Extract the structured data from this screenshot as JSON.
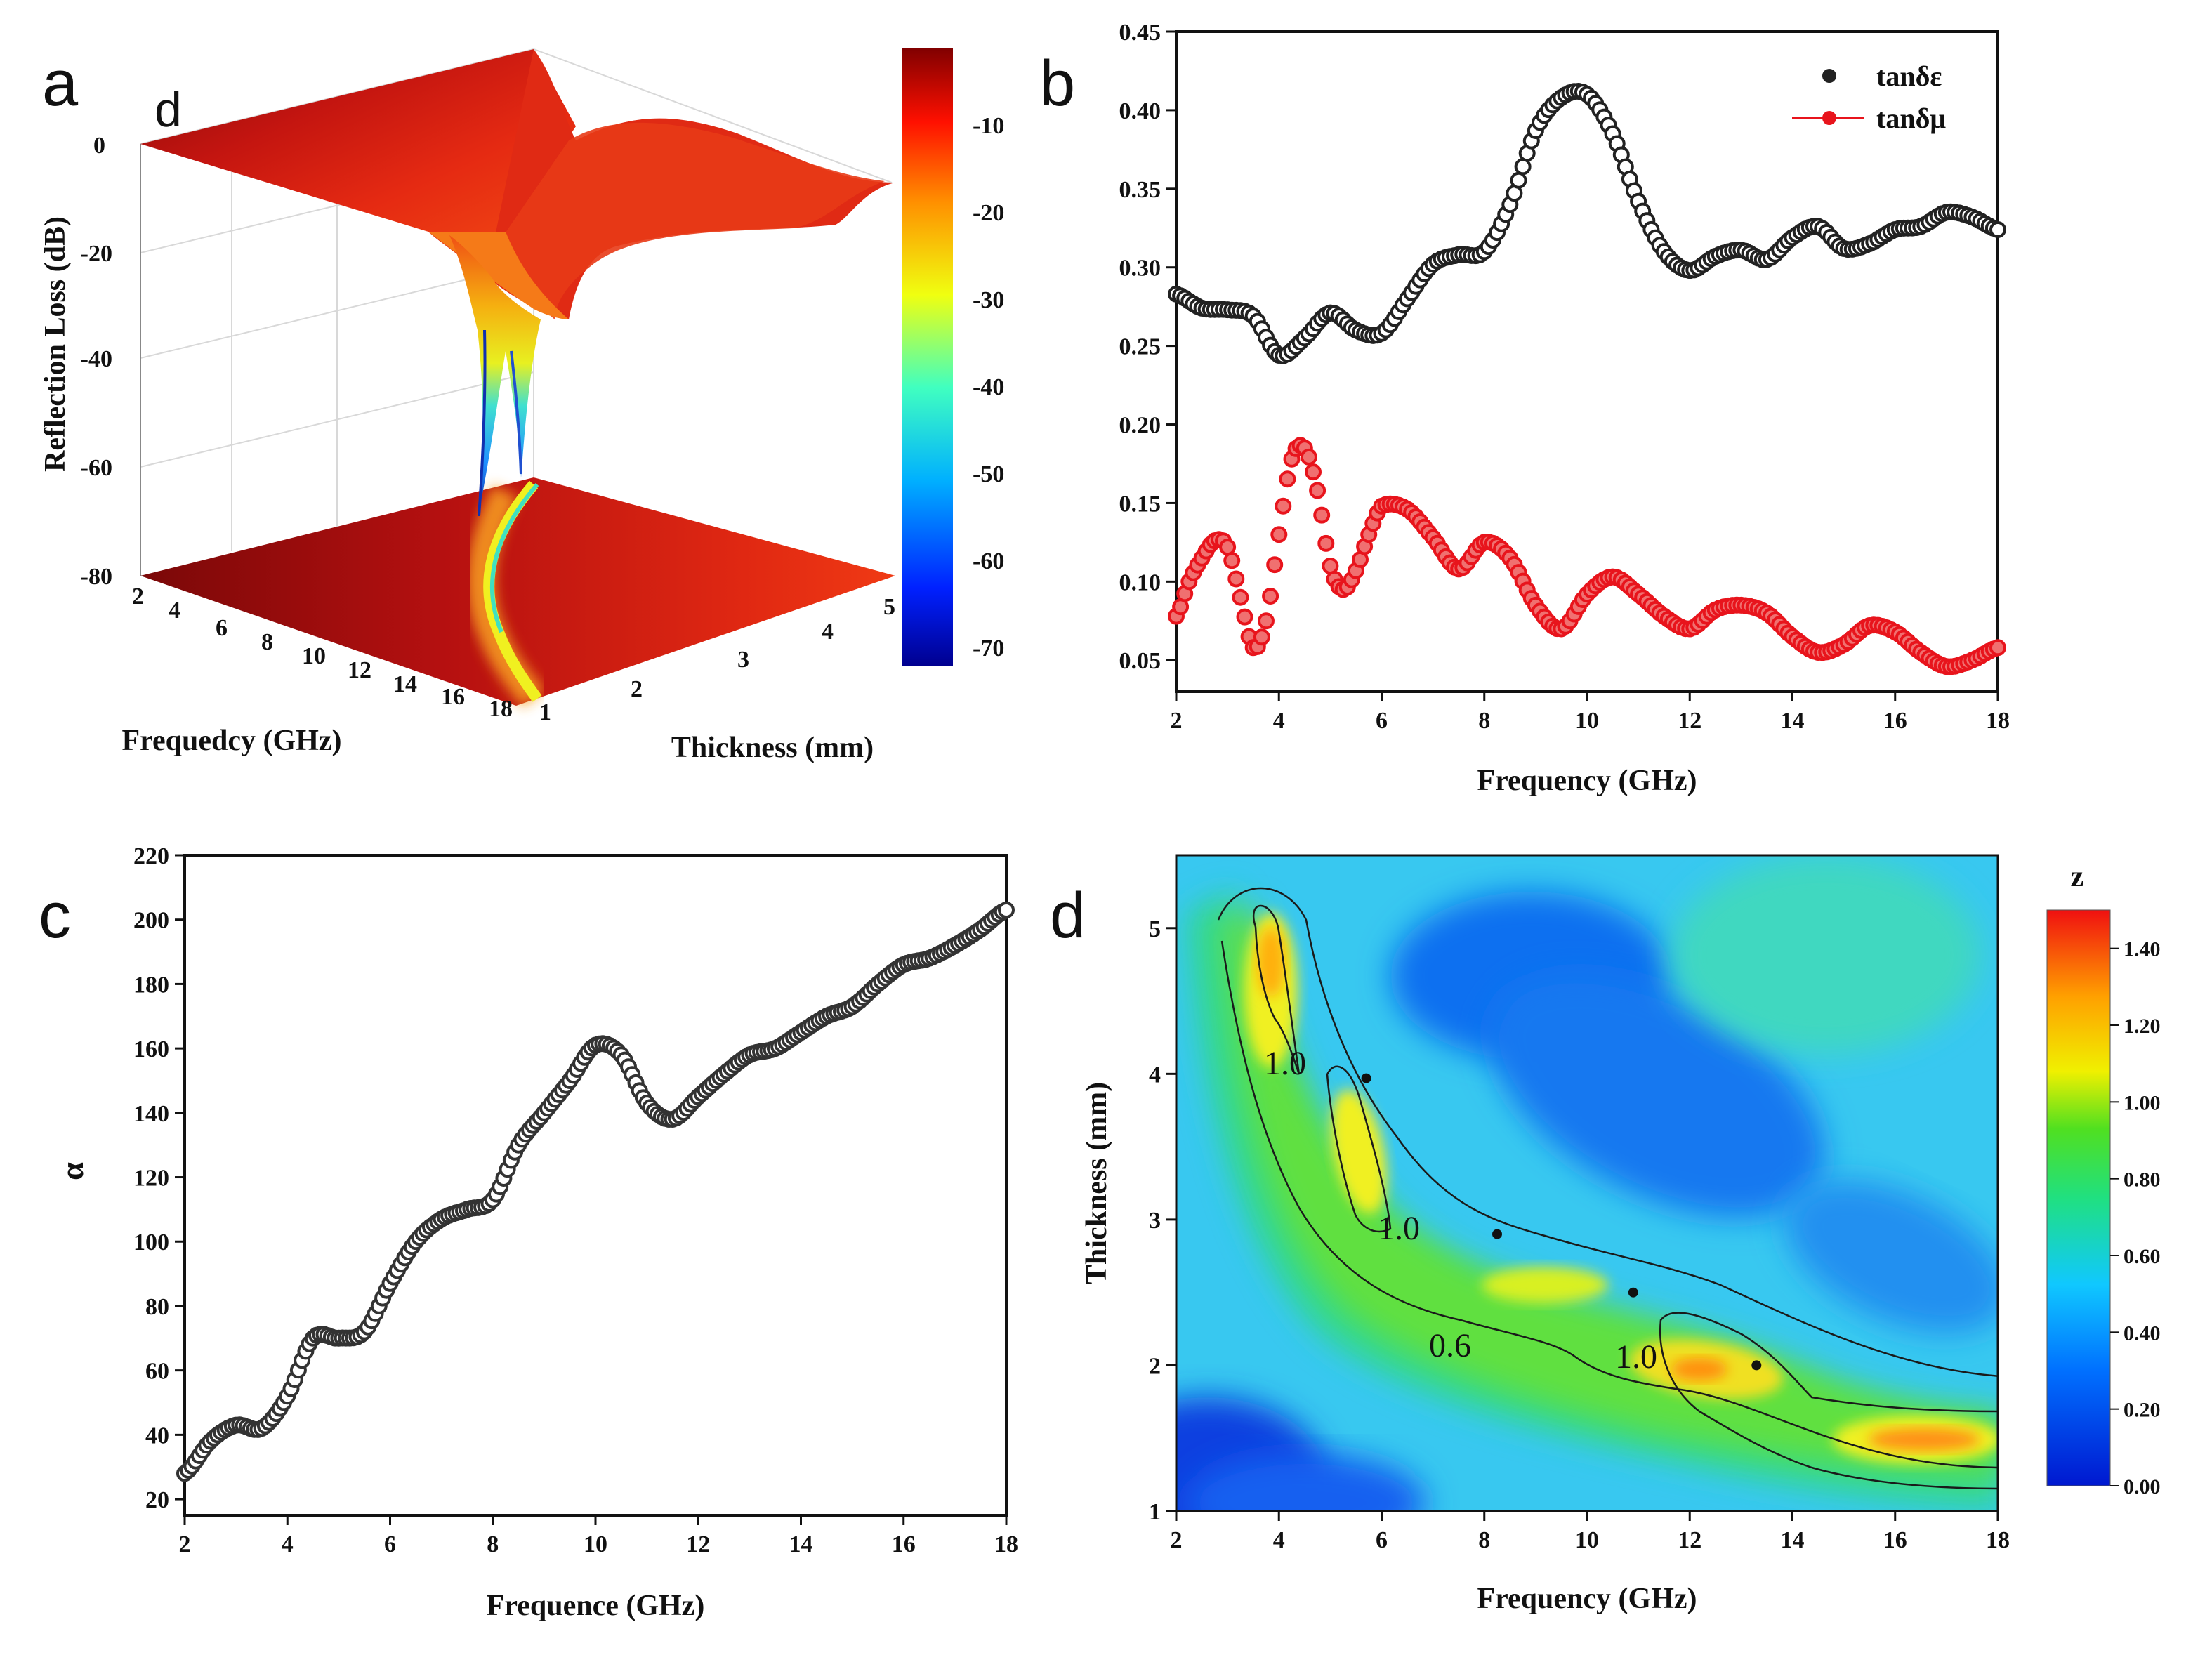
{
  "panels": {
    "a": {
      "letter": "a",
      "overlay_letter": "d",
      "z_title": "Reflection Loss (dB)",
      "x_title": "Frequedcy (GHz)",
      "y_title": "Thickness (mm)",
      "z_ticks": [
        "0",
        "-20",
        "-40",
        "-60",
        "-80"
      ],
      "x_ticks": [
        "2",
        "4",
        "6",
        "8",
        "10",
        "12",
        "14",
        "16",
        "18"
      ],
      "y_ticks": [
        "1",
        "2",
        "3",
        "4",
        "5"
      ],
      "colorbar_ticks": [
        "-10",
        "-20",
        "-30",
        "-40",
        "-50",
        "-60",
        "-70"
      ]
    },
    "b": {
      "letter": "b",
      "x_title": "Frequency (GHz)",
      "x_ticks": [
        "2",
        "4",
        "6",
        "8",
        "10",
        "12",
        "14",
        "16",
        "18"
      ],
      "y_ticks": [
        "0.05",
        "0.10",
        "0.15",
        "0.20",
        "0.25",
        "0.30",
        "0.35",
        "0.40",
        "0.45"
      ],
      "legend": [
        "tanδε",
        "tanδμ"
      ]
    },
    "c": {
      "letter": "c",
      "x_title": "Frequence (GHz)",
      "y_title": "α",
      "x_ticks": [
        "2",
        "4",
        "6",
        "8",
        "10",
        "12",
        "14",
        "16",
        "18"
      ],
      "y_ticks": [
        "20",
        "40",
        "60",
        "80",
        "100",
        "120",
        "140",
        "160",
        "180",
        "200",
        "220"
      ]
    },
    "d": {
      "letter": "d",
      "x_title": "Frequency (GHz)",
      "y_title": "Thickness (mm)",
      "x_ticks": [
        "2",
        "4",
        "6",
        "8",
        "10",
        "12",
        "14",
        "16",
        "18"
      ],
      "y_ticks": [
        "1",
        "2",
        "3",
        "4",
        "5"
      ],
      "colorbar_title": "z",
      "colorbar_ticks": [
        "0.00",
        "0.20",
        "0.40",
        "0.60",
        "0.80",
        "1.00",
        "1.20",
        "1.40"
      ],
      "contour_labels": [
        "1.0",
        "1.0",
        "0.6",
        "1.0"
      ]
    }
  },
  "colors": {
    "tan_e": "#222222",
    "tan_u": "#e8141c",
    "alpha_line": "#333333",
    "surface_dark_red": "#8b0000",
    "surface_red": "#e0201c",
    "surface_orange": "#f08020",
    "surface_yellow": "#f0f000",
    "surface_cyan": "#30d0f0",
    "surface_blue": "#1020a0"
  },
  "chart_data": [
    {
      "panel": "a",
      "type": "surface",
      "zlabel": "Reflection Loss (dB)",
      "xlabel": "Frequedcy (GHz)",
      "ylabel": "Thickness (mm)",
      "xlim": [
        2,
        18
      ],
      "ylim": [
        1,
        5
      ],
      "zlim": [
        -80,
        0
      ],
      "colorbar_range": [
        -75,
        -2
      ],
      "min_point": {
        "frequency": 7,
        "thickness": 3,
        "rl": -74
      },
      "colormap": "jet"
    },
    {
      "panel": "b",
      "type": "scatter",
      "xlabel": "Frequency (GHz)",
      "xlim": [
        2,
        18
      ],
      "ylim": [
        0.03,
        0.45
      ],
      "legend_position": "top-right",
      "series": [
        {
          "name": "tanδε",
          "x": [
            2,
            2.5,
            3,
            3.5,
            4,
            4.5,
            5,
            5.5,
            6,
            6.5,
            7,
            7.5,
            8,
            8.5,
            9,
            9.5,
            10,
            10.5,
            11,
            11.5,
            12,
            12.5,
            13,
            13.5,
            14,
            14.5,
            15,
            15.5,
            16,
            16.5,
            17,
            17.5,
            18
          ],
          "y": [
            0.283,
            0.274,
            0.273,
            0.269,
            0.244,
            0.255,
            0.271,
            0.26,
            0.258,
            0.28,
            0.302,
            0.308,
            0.31,
            0.34,
            0.387,
            0.408,
            0.41,
            0.385,
            0.342,
            0.31,
            0.298,
            0.307,
            0.311,
            0.305,
            0.319,
            0.326,
            0.312,
            0.315,
            0.324,
            0.326,
            0.335,
            0.332,
            0.324
          ]
        },
        {
          "name": "tanδμ",
          "x": [
            2,
            2.25,
            2.5,
            2.75,
            3,
            3.25,
            3.5,
            3.75,
            4,
            4.25,
            4.5,
            4.75,
            5,
            5.25,
            5.5,
            5.75,
            6,
            6.5,
            7,
            7.5,
            8,
            8.5,
            9,
            9.5,
            10,
            10.5,
            11,
            11.5,
            12,
            12.5,
            13,
            13.5,
            14,
            14.5,
            15,
            15.5,
            16,
            16.5,
            17,
            17.5,
            18
          ],
          "y": [
            0.078,
            0.1,
            0.115,
            0.126,
            0.122,
            0.09,
            0.058,
            0.075,
            0.13,
            0.178,
            0.185,
            0.158,
            0.11,
            0.095,
            0.107,
            0.13,
            0.148,
            0.146,
            0.128,
            0.108,
            0.125,
            0.115,
            0.085,
            0.07,
            0.092,
            0.103,
            0.092,
            0.078,
            0.07,
            0.082,
            0.085,
            0.08,
            0.065,
            0.055,
            0.06,
            0.072,
            0.068,
            0.055,
            0.046,
            0.05,
            0.058
          ]
        }
      ]
    },
    {
      "panel": "c",
      "type": "scatter",
      "xlabel": "Frequence (GHz)",
      "ylabel": "α",
      "xlim": [
        2,
        18
      ],
      "ylim": [
        15,
        220
      ],
      "series": [
        {
          "name": "",
          "x": [
            2,
            2.5,
            3,
            3.5,
            4,
            4.5,
            5,
            5.5,
            6,
            6.5,
            7,
            7.5,
            8,
            8.5,
            9,
            9.5,
            10,
            10.5,
            11,
            11.5,
            12,
            12.5,
            13,
            13.5,
            14,
            14.5,
            15,
            15.5,
            16,
            16.5,
            17,
            17.5,
            18
          ],
          "y": [
            28,
            38,
            43,
            42,
            52,
            70,
            70,
            72,
            87,
            100,
            107,
            110,
            113,
            130,
            140,
            150,
            161,
            158,
            143,
            138,
            145,
            152,
            158,
            160,
            165,
            170,
            173,
            180,
            186,
            188,
            192,
            197,
            203
          ]
        }
      ]
    },
    {
      "panel": "d",
      "type": "heatmap",
      "xlabel": "Frequency (GHz)",
      "ylabel": "Thickness (mm)",
      "xlim": [
        2,
        18
      ],
      "ylim": [
        1,
        5.5
      ],
      "zlim": [
        0,
        1.5
      ],
      "contour_levels": [
        0.6,
        1.0
      ],
      "marked_points": [
        {
          "x": 5.7,
          "y": 3.97
        },
        {
          "x": 8.25,
          "y": 2.9
        },
        {
          "x": 10.9,
          "y": 2.5
        },
        {
          "x": 13.3,
          "y": 2.0
        }
      ]
    }
  ]
}
